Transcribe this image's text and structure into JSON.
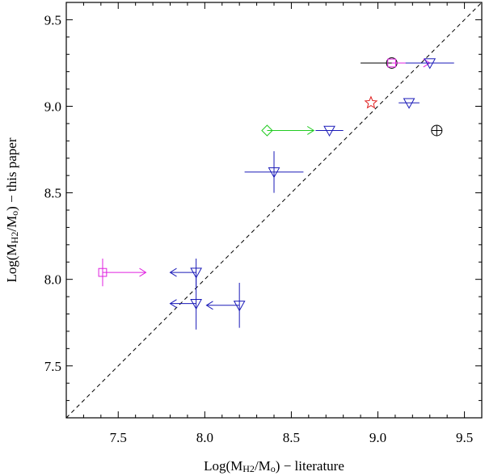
{
  "chart_data": {
    "type": "scatter",
    "title": "",
    "xlabel": {
      "prefix": "Log(M",
      "sub": "H2",
      "mid": "/M",
      "sub2": "o",
      "suffix": ") − literature"
    },
    "ylabel": {
      "prefix": "Log(M",
      "sub": "H2",
      "mid": "/M",
      "sub2": "o",
      "suffix": ") − this paper"
    },
    "xlim": [
      7.2,
      9.6
    ],
    "ylim": [
      7.2,
      9.6
    ],
    "xticks": [
      "7.5",
      "8.0",
      "8.5",
      "9.0",
      "9.5"
    ],
    "yticks": [
      "7.5",
      "8.0",
      "8.5",
      "9.0",
      "9.5"
    ],
    "reference_line": {
      "name": "one-to-one",
      "style": "dashed",
      "color": "#000000"
    },
    "colors": {
      "magenta": "#e020e0",
      "blue": "#1a1ab8",
      "green": "#22cc22",
      "red": "#e02020",
      "black": "#000000"
    },
    "points": [
      {
        "name": "magenta-square-low",
        "marker": "square",
        "color": "#e020e0",
        "x": 7.41,
        "y": 8.04,
        "yerr": 0.08,
        "xarrow": 7.66
      },
      {
        "name": "blue-triangle-a",
        "marker": "triangle",
        "color": "#1a1ab8",
        "x": 7.95,
        "y": 8.04,
        "yerr": 0.08,
        "xarrow": 7.8
      },
      {
        "name": "blue-triangle-b",
        "marker": "triangle",
        "color": "#1a1ab8",
        "x": 7.95,
        "y": 7.86,
        "yerr": 0.15,
        "xarrow": 7.8
      },
      {
        "name": "blue-triangle-c",
        "marker": "triangle",
        "color": "#1a1ab8",
        "x": 8.2,
        "y": 7.85,
        "yerr": 0.13,
        "xarrow": 8.01
      },
      {
        "name": "blue-triangle-d",
        "marker": "triangle",
        "color": "#1a1ab8",
        "x": 8.4,
        "y": 8.62,
        "yerr": 0.12,
        "xerr": 0.17
      },
      {
        "name": "green-diamond",
        "marker": "diamond",
        "color": "#22cc22",
        "x": 8.36,
        "y": 8.86,
        "xarrow": 8.63
      },
      {
        "name": "blue-triangle-e",
        "marker": "triangle",
        "color": "#1a1ab8",
        "x": 8.72,
        "y": 8.86,
        "xerr": 0.08
      },
      {
        "name": "red-star",
        "marker": "star",
        "color": "#e02020",
        "x": 8.96,
        "y": 9.02
      },
      {
        "name": "blue-triangle-f",
        "marker": "triangle",
        "color": "#1a1ab8",
        "x": 9.18,
        "y": 9.02,
        "xerr": 0.06
      },
      {
        "name": "black-circle-cross",
        "marker": "circle-cross",
        "color": "#000000",
        "x": 9.34,
        "y": 8.86
      },
      {
        "name": "black-circle",
        "marker": "circle",
        "color": "#000000",
        "x": 9.08,
        "y": 9.25,
        "xerr": 0.18
      },
      {
        "name": "magenta-square-high",
        "marker": "square",
        "color": "#e020e0",
        "x": 9.08,
        "y": 9.25,
        "xarrow": 9.3
      },
      {
        "name": "blue-triangle-g",
        "marker": "triangle",
        "color": "#1a1ab8",
        "x": 9.3,
        "y": 9.25,
        "xerr": 0.14
      }
    ]
  }
}
